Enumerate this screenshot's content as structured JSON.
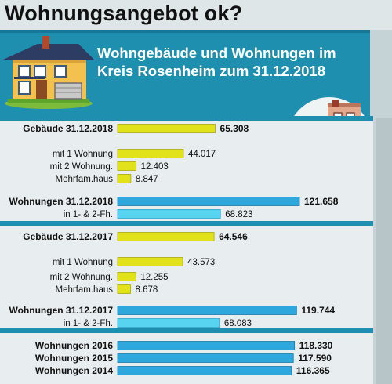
{
  "page": {
    "title": "Wohnungsangebot ok?",
    "subtitle": "Wohngebäude und Wohnungen im Kreis Rosenheim zum 31.12.2018"
  },
  "icons": [
    "house-icon",
    "apartment-building-icon"
  ],
  "colors": {
    "band": "#1f8fb0",
    "bar_buildings": "#e2e21a",
    "bar_dwellings": "#2ea8dc",
    "bar_dwellings_light": "#58d4f0",
    "background": "#dfe6e8"
  },
  "chart_data": {
    "type": "bar",
    "orientation": "horizontal",
    "categories": [
      "Gebäude 31.12.2018",
      "mit 1 Wohnung",
      "mit 2 Wohnung.",
      "Mehrfam.haus",
      "Wohnungen 31.12.2018",
      "in 1- & 2-Fh.",
      "Gebäude 31.12.2017",
      "mit 1 Wohnung",
      "mit 2 Wohnung.",
      "Mehrfam.haus",
      "Wohnungen 31.12.2017",
      "in 1- & 2-Fh.",
      "Wohnungen 2016",
      "Wohnungen 2015",
      "Wohnungen 2014"
    ],
    "values": [
      65308,
      44017,
      12403,
      8847,
      121658,
      68823,
      64546,
      43573,
      12255,
      8678,
      119744,
      68083,
      118330,
      117590,
      116365
    ],
    "value_labels": [
      "65.308",
      "44.017",
      "12.403",
      "8.847",
      "121.658",
      "68.823",
      "64.546",
      "43.573",
      "12.255",
      "8.678",
      "119.744",
      "68.083",
      "118.330",
      "117.590",
      "116.365"
    ],
    "bold": [
      true,
      false,
      false,
      false,
      true,
      false,
      true,
      false,
      false,
      false,
      true,
      false,
      true,
      true,
      true
    ],
    "group": [
      "buildings",
      "buildings",
      "buildings",
      "buildings",
      "dwellings",
      "dwellings_light",
      "buildings",
      "buildings",
      "buildings",
      "buildings",
      "dwellings",
      "dwellings_light",
      "dwellings",
      "dwellings",
      "dwellings"
    ],
    "title": "",
    "xlabel": "",
    "ylabel": "",
    "grid": false,
    "legend": "none"
  }
}
